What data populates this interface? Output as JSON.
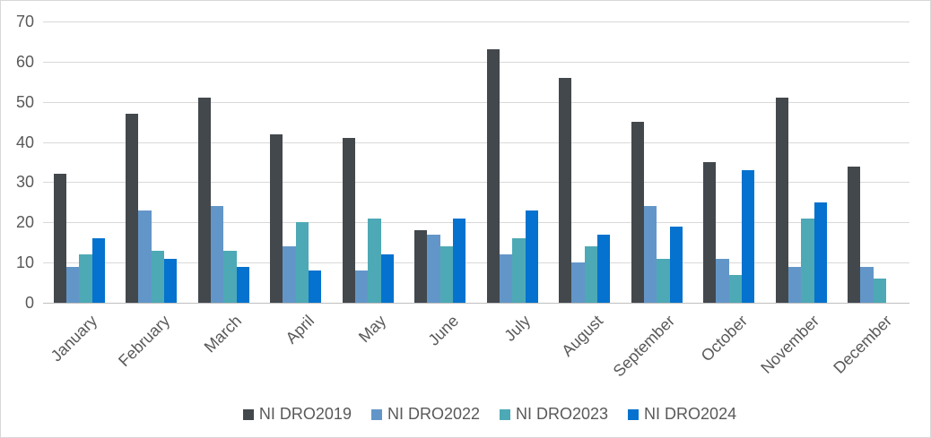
{
  "chart_data": {
    "type": "bar",
    "title": "",
    "xlabel": "",
    "ylabel": "",
    "ylim": [
      0,
      70
    ],
    "yticks": [
      0,
      10,
      20,
      30,
      40,
      50,
      60,
      70
    ],
    "grid": "horizontal",
    "legend_position": "bottom",
    "categories": [
      "January",
      "February",
      "March",
      "April",
      "May",
      "June",
      "July",
      "August",
      "September",
      "October",
      "November",
      "December"
    ],
    "series": [
      {
        "name": "NI DRO2019",
        "color": "#43484D",
        "values": [
          32,
          47,
          51,
          42,
          41,
          18,
          63,
          56,
          45,
          35,
          51,
          34
        ]
      },
      {
        "name": "NI DRO2022",
        "color": "#6396C8",
        "values": [
          9,
          23,
          24,
          14,
          8,
          17,
          12,
          10,
          24,
          11,
          9,
          9
        ]
      },
      {
        "name": "NI DRO2023",
        "color": "#4DA9B5",
        "values": [
          12,
          13,
          13,
          20,
          21,
          14,
          16,
          14,
          11,
          7,
          21,
          6
        ]
      },
      {
        "name": "NI DRO2024",
        "color": "#0472CE",
        "values": [
          16,
          11,
          9,
          8,
          12,
          21,
          23,
          17,
          19,
          33,
          25,
          null
        ]
      }
    ]
  },
  "colors": {
    "axis_text": "#595959",
    "gridline": "#D9D9D9",
    "axis_line": "#BFBFBF",
    "frame_border": "#D8D8D8",
    "background": "#FFFFFF"
  }
}
